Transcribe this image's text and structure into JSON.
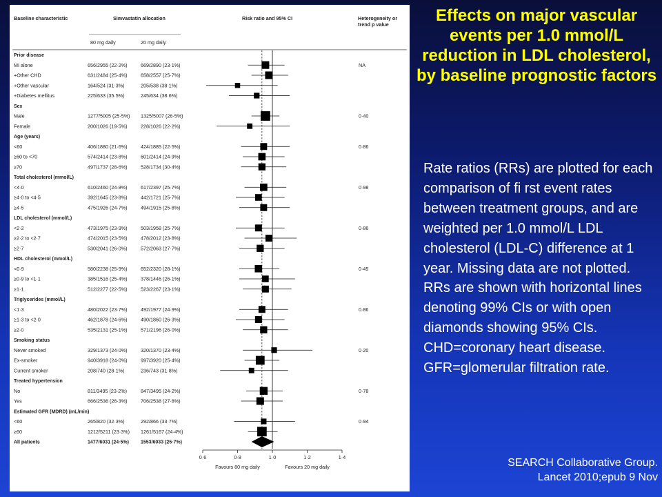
{
  "slide": {
    "title": "Effects on major vascular events per 1.0 mmol/L reduction in LDL cholesterol, by baseline prognostic factors",
    "notes": "Rate ratios (RRs) are plotted for each comparison of fi rst event rates between treatment groups, and are weighted per 1.0 mmol/L LDL cholesterol (LDL-C) difference at 1 year. Missing data are not plotted. RRs are shown with horizontal lines denoting 99% CIs or with open diamonds showing 95% CIs. CHD=coronary heart disease. GFR=glomerular filtration rate.",
    "citation_line1": "SEARCH Collaborative Group.",
    "citation_line2": "Lancet 2010;epub 9 Nov",
    "colors": {
      "title": "#ffff00",
      "text": "#ffffff",
      "background": "#1535b8"
    }
  },
  "chart_data": {
    "type": "forest",
    "header": {
      "col1": "Baseline characteristic",
      "col2": "Simvastatin allocation",
      "col2a": "80 mg daily",
      "col2b": "20 mg daily",
      "col3": "Risk ratio and 95% CI",
      "col4a": "Heterogeneity or",
      "col4b": "trend p value"
    },
    "xlim": [
      0.6,
      1.4
    ],
    "ticks": [
      0.6,
      0.8,
      1.0,
      1.2,
      1.4
    ],
    "tick_labels": [
      "0·6",
      "0·8",
      "1·0",
      "1·2",
      "1·4"
    ],
    "favours_left": "Favours 80 mg daily",
    "favours_right": "Favours 20 mg daily",
    "overall_rr": 0.94,
    "rows": [
      {
        "kind": "group",
        "label": "Prior disease"
      },
      {
        "kind": "item",
        "label": "MI alone",
        "a": "656/2955 (22·2%)",
        "b": "669/2890 (23·1%)",
        "rr": 0.96,
        "lo": 0.86,
        "hi": 1.07,
        "w": 1.0,
        "p": "NA"
      },
      {
        "kind": "item",
        "label": "+Other CHD",
        "a": "631/2484 (25·4%)",
        "b": "658/2557 (25·7%)",
        "rr": 0.98,
        "lo": 0.88,
        "hi": 1.09,
        "w": 1.0,
        "p": ""
      },
      {
        "kind": "item",
        "label": "+Other vascular",
        "a": "164/524 (31·3%)",
        "b": "205/538 (38·1%)",
        "rr": 0.8,
        "lo": 0.62,
        "hi": 1.03,
        "w": 0.5,
        "p": ""
      },
      {
        "kind": "item",
        "label": "+Diabetes mellitus",
        "a": "225/633 (35·5%)",
        "b": "245/634 (38·6%)",
        "rr": 0.91,
        "lo": 0.75,
        "hi": 1.1,
        "w": 0.6,
        "p": ""
      },
      {
        "kind": "group",
        "label": "Sex"
      },
      {
        "kind": "item",
        "label": "Male",
        "a": "1277/5005 (25·5%)",
        "b": "1325/5007 (26·5%)",
        "rr": 0.96,
        "lo": 0.88,
        "hi": 1.04,
        "w": 1.4,
        "p": "0·40"
      },
      {
        "kind": "item",
        "label": "Female",
        "a": "200/1026 (19·5%)",
        "b": "228/1026 (22·2%)",
        "rr": 0.87,
        "lo": 0.68,
        "hi": 1.1,
        "w": 0.55,
        "p": ""
      },
      {
        "kind": "group",
        "label": "Age (years)"
      },
      {
        "kind": "item",
        "label": "<60",
        "a": "406/1880 (21·6%)",
        "b": "424/1885 (22·5%)",
        "rr": 0.95,
        "lo": 0.82,
        "hi": 1.1,
        "w": 0.85,
        "p": "0·86"
      },
      {
        "kind": "item",
        "label": "≥60 to <70",
        "a": "574/2414 (23·8%)",
        "b": "601/2414 (24·9%)",
        "rr": 0.94,
        "lo": 0.83,
        "hi": 1.07,
        "w": 0.95,
        "p": ""
      },
      {
        "kind": "item",
        "label": "≥70",
        "a": "497/1737 (28·6%)",
        "b": "528/1734 (30·4%)",
        "rr": 0.94,
        "lo": 0.82,
        "hi": 1.08,
        "w": 0.9,
        "p": ""
      },
      {
        "kind": "group",
        "label": "Total cholesterol (mmol/L)"
      },
      {
        "kind": "item",
        "label": "<4·0",
        "a": "610/2460 (24·8%)",
        "b": "617/2397 (25·7%)",
        "rr": 0.95,
        "lo": 0.84,
        "hi": 1.08,
        "w": 0.95,
        "p": "0·98"
      },
      {
        "kind": "item",
        "label": "≥4·0 to <4·5",
        "a": "392/1645 (23·8%)",
        "b": "442/1721 (25·7%)",
        "rr": 0.92,
        "lo": 0.79,
        "hi": 1.07,
        "w": 0.8,
        "p": ""
      },
      {
        "kind": "item",
        "label": "≥4·5",
        "a": "475/1926 (24·7%)",
        "b": "494/1915 (25·8%)",
        "rr": 0.95,
        "lo": 0.81,
        "hi": 1.1,
        "w": 0.85,
        "p": ""
      },
      {
        "kind": "group",
        "label": "LDL cholesterol (mmol/L)"
      },
      {
        "kind": "item",
        "label": "<2·2",
        "a": "473/1975 (23·9%)",
        "b": "503/1958 (25·7%)",
        "rr": 0.92,
        "lo": 0.79,
        "hi": 1.07,
        "w": 0.85,
        "p": "0·86"
      },
      {
        "kind": "item",
        "label": "≥2·2 to <2·7",
        "a": "474/2015 (23·5%)",
        "b": "478/2012 (23·8%)",
        "rr": 0.98,
        "lo": 0.84,
        "hi": 1.14,
        "w": 0.85,
        "p": ""
      },
      {
        "kind": "item",
        "label": "≥2·7",
        "a": "530/2041 (26·0%)",
        "b": "572/2063 (27·7%)",
        "rr": 0.93,
        "lo": 0.81,
        "hi": 1.07,
        "w": 0.9,
        "p": ""
      },
      {
        "kind": "group",
        "label": "HDL cholesterol (mmol/L)"
      },
      {
        "kind": "item",
        "label": "<0·9",
        "a": "580/2238 (25·9%)",
        "b": "652/2320 (28·1%)",
        "rr": 0.92,
        "lo": 0.81,
        "hi": 1.04,
        "w": 0.95,
        "p": "0·45"
      },
      {
        "kind": "item",
        "label": "≥0·9 to <1·1",
        "a": "385/1516 (25·4%)",
        "b": "378/1446 (26·1%)",
        "rr": 0.96,
        "lo": 0.81,
        "hi": 1.13,
        "w": 0.8,
        "p": ""
      },
      {
        "kind": "item",
        "label": "≥1·1",
        "a": "512/2277 (22·5%)",
        "b": "523/2267 (23·1%)",
        "rr": 0.96,
        "lo": 0.83,
        "hi": 1.11,
        "w": 0.85,
        "p": ""
      },
      {
        "kind": "group",
        "label": "Triglycerides (mmol/L)"
      },
      {
        "kind": "item",
        "label": "<1·3",
        "a": "480/2022 (23·7%)",
        "b": "492/1977 (24·9%)",
        "rr": 0.94,
        "lo": 0.81,
        "hi": 1.09,
        "w": 0.85,
        "p": "0·86"
      },
      {
        "kind": "item",
        "label": "≥1·3 to <2·0",
        "a": "462/1878 (24·6%)",
        "b": "490/1860 (26·3%)",
        "rr": 0.92,
        "lo": 0.79,
        "hi": 1.07,
        "w": 0.85,
        "p": ""
      },
      {
        "kind": "item",
        "label": "≥2·0",
        "a": "535/2131 (25·1%)",
        "b": "571/2196 (26·0%)",
        "rr": 0.95,
        "lo": 0.83,
        "hi": 1.09,
        "w": 0.9,
        "p": ""
      },
      {
        "kind": "group",
        "label": "Smoking status"
      },
      {
        "kind": "item",
        "label": "Never smoked",
        "a": "329/1373 (24·0%)",
        "b": "320/1370 (23·4%)",
        "rr": 1.01,
        "lo": 0.83,
        "hi": 1.23,
        "w": 0.6,
        "p": "0·20"
      },
      {
        "kind": "item",
        "label": "Ex-smoker",
        "a": "940/3918 (24·0%)",
        "b": "997/3920 (25·4%)",
        "rr": 0.93,
        "lo": 0.84,
        "hi": 1.04,
        "w": 1.25,
        "p": ""
      },
      {
        "kind": "item",
        "label": "Current smoker",
        "a": "208/740 (28·1%)",
        "b": "236/743 (31·8%)",
        "rr": 0.88,
        "lo": 0.7,
        "hi": 1.09,
        "w": 0.55,
        "p": ""
      },
      {
        "kind": "group",
        "label": "Treated hypertension"
      },
      {
        "kind": "item",
        "label": "No",
        "a": "811/3495 (23·2%)",
        "b": "847/3495 (24·2%)",
        "rr": 0.95,
        "lo": 0.85,
        "hi": 1.06,
        "w": 1.05,
        "p": "0·78"
      },
      {
        "kind": "item",
        "label": "Yes",
        "a": "666/2536 (26·3%)",
        "b": "706/2538 (27·8%)",
        "rr": 0.93,
        "lo": 0.82,
        "hi": 1.06,
        "w": 1.0,
        "p": ""
      },
      {
        "kind": "group",
        "label": "Estimated GFR (MDRD) (mL/min)"
      },
      {
        "kind": "item",
        "label": "<60",
        "a": "265/820 (32·3%)",
        "b": "292/866 (33·7%)",
        "rr": 0.95,
        "lo": 0.78,
        "hi": 1.13,
        "w": 0.6,
        "p": "0·94"
      },
      {
        "kind": "item",
        "label": "≥60",
        "a": "1212/5211 (23·3%)",
        "b": "1261/5167 (24·4%)",
        "rr": 0.94,
        "lo": 0.86,
        "hi": 1.03,
        "w": 1.4,
        "p": ""
      },
      {
        "kind": "total",
        "label": "All patients",
        "a": "1477/6031 (24·5%)",
        "b": "1553/6033 (25·7%)",
        "rr": 0.94,
        "lo": 0.88,
        "hi": 1.01,
        "p": ""
      }
    ]
  }
}
